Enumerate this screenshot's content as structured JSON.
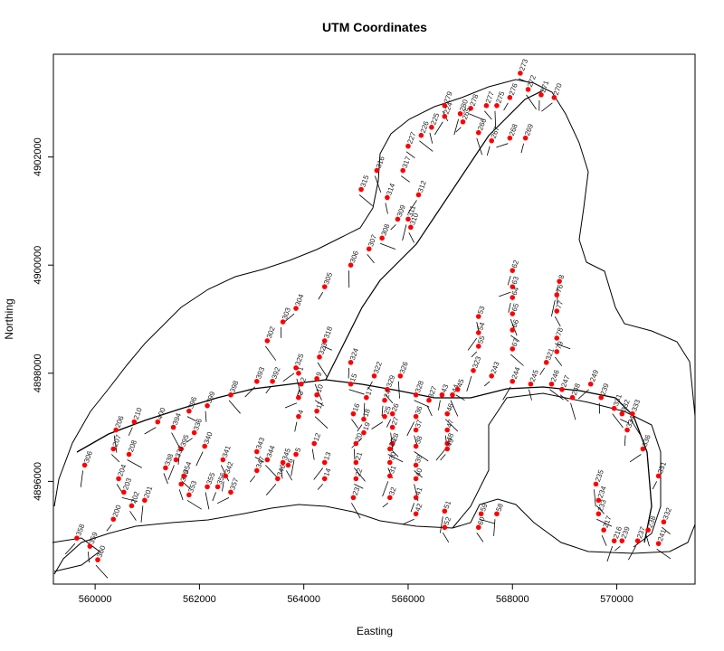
{
  "chart_data": {
    "type": "scatter",
    "title": "UTM Coordinates",
    "xlabel": "Easting",
    "ylabel": "Northing",
    "xlim": [
      559200,
      571500
    ],
    "ylim": [
      4894100,
      4903900
    ],
    "x_ticks": [
      560000,
      562000,
      564000,
      566000,
      568000,
      570000
    ],
    "x_tick_labels": [
      "560000",
      "562000",
      "564000",
      "566000",
      "568000",
      "570000"
    ],
    "y_ticks": [
      4896000,
      4898000,
      4900000,
      4902000
    ],
    "y_tick_labels": [
      "4896000",
      "4898000",
      "4900000",
      "4902000"
    ],
    "grid": false,
    "legend": "none",
    "point_color": "#ff0000",
    "line_color": "#000000",
    "points": [
      {
        "id": "273",
        "x": 568150,
        "y": 4903550
      },
      {
        "id": "272",
        "x": 568300,
        "y": 4903250
      },
      {
        "id": "271",
        "x": 568550,
        "y": 4903150
      },
      {
        "id": "270",
        "x": 568800,
        "y": 4903100
      },
      {
        "id": "276",
        "x": 567950,
        "y": 4903100
      },
      {
        "id": "275",
        "x": 567700,
        "y": 4902950
      },
      {
        "id": "277",
        "x": 567500,
        "y": 4902950
      },
      {
        "id": "278",
        "x": 567200,
        "y": 4902900
      },
      {
        "id": "279",
        "x": 566700,
        "y": 4902950
      },
      {
        "id": "280",
        "x": 567000,
        "y": 4902800
      },
      {
        "id": "265",
        "x": 567050,
        "y": 4902650
      },
      {
        "id": "224",
        "x": 566700,
        "y": 4902750
      },
      {
        "id": "225",
        "x": 566450,
        "y": 4902550
      },
      {
        "id": "226",
        "x": 566250,
        "y": 4902400
      },
      {
        "id": "227",
        "x": 566000,
        "y": 4902200
      },
      {
        "id": "266",
        "x": 567350,
        "y": 4902450
      },
      {
        "id": "267",
        "x": 567600,
        "y": 4902300
      },
      {
        "id": "268",
        "x": 567950,
        "y": 4902350
      },
      {
        "id": "269",
        "x": 568250,
        "y": 4902350
      },
      {
        "id": "316",
        "x": 565400,
        "y": 4901750
      },
      {
        "id": "317",
        "x": 565900,
        "y": 4901750
      },
      {
        "id": "315",
        "x": 565100,
        "y": 4901400
      },
      {
        "id": "314",
        "x": 565600,
        "y": 4901250
      },
      {
        "id": "312",
        "x": 566200,
        "y": 4901300
      },
      {
        "id": "309",
        "x": 565800,
        "y": 4900850
      },
      {
        "id": "311",
        "x": 566000,
        "y": 4900850
      },
      {
        "id": "310",
        "x": 566050,
        "y": 4900700
      },
      {
        "id": "308",
        "x": 565500,
        "y": 4900500
      },
      {
        "id": "307",
        "x": 565250,
        "y": 4900300
      },
      {
        "id": "306",
        "x": 564900,
        "y": 4900000
      },
      {
        "id": "305",
        "x": 564400,
        "y": 4899600
      },
      {
        "id": "304",
        "x": 563850,
        "y": 4899200
      },
      {
        "id": "303",
        "x": 563600,
        "y": 4898950
      },
      {
        "id": "302",
        "x": 563300,
        "y": 4898600
      },
      {
        "id": "318",
        "x": 564400,
        "y": 4898600
      },
      {
        "id": "323",
        "x": 564300,
        "y": 4898300
      },
      {
        "id": "324",
        "x": 564900,
        "y": 4898200
      },
      {
        "id": "325",
        "x": 563850,
        "y": 4898100
      },
      {
        "id": "322",
        "x": 565350,
        "y": 4897950
      },
      {
        "id": "326",
        "x": 565850,
        "y": 4897950
      },
      {
        "id": "329",
        "x": 565600,
        "y": 4897700
      },
      {
        "id": "328",
        "x": 566150,
        "y": 4897600
      },
      {
        "id": "327",
        "x": 566400,
        "y": 4897500
      },
      {
        "id": "323",
        "x": 567250,
        "y": 4898050
      },
      {
        "id": "243",
        "x": 567600,
        "y": 4897950
      },
      {
        "id": "244",
        "x": 568000,
        "y": 4897850
      },
      {
        "id": "245",
        "x": 568350,
        "y": 4897800
      },
      {
        "id": "246",
        "x": 568750,
        "y": 4897800
      },
      {
        "id": "247",
        "x": 568950,
        "y": 4897700
      },
      {
        "id": "248",
        "x": 569150,
        "y": 4897550
      },
      {
        "id": "62",
        "x": 568000,
        "y": 4899900
      },
      {
        "id": "63",
        "x": 568000,
        "y": 4899600
      },
      {
        "id": "64",
        "x": 568000,
        "y": 4899400
      },
      {
        "id": "65",
        "x": 568000,
        "y": 4899100
      },
      {
        "id": "66",
        "x": 568000,
        "y": 4898800
      },
      {
        "id": "67",
        "x": 568000,
        "y": 4898450
      },
      {
        "id": "53",
        "x": 567350,
        "y": 4899050
      },
      {
        "id": "54",
        "x": 567350,
        "y": 4898750
      },
      {
        "id": "55",
        "x": 567350,
        "y": 4898500
      },
      {
        "id": "76",
        "x": 568850,
        "y": 4899450
      },
      {
        "id": "77",
        "x": 568850,
        "y": 4899150
      },
      {
        "id": "78",
        "x": 568850,
        "y": 4898650
      },
      {
        "id": "79",
        "x": 568850,
        "y": 4898400
      },
      {
        "id": "8",
        "x": 568900,
        "y": 4899700
      },
      {
        "id": "321",
        "x": 568650,
        "y": 4898200
      },
      {
        "id": "249",
        "x": 569500,
        "y": 4897800
      },
      {
        "id": "239",
        "x": 569700,
        "y": 4897550
      },
      {
        "id": "331",
        "x": 569950,
        "y": 4897350
      },
      {
        "id": "332",
        "x": 570100,
        "y": 4897250
      },
      {
        "id": "333",
        "x": 570300,
        "y": 4897250
      },
      {
        "id": "334",
        "x": 570200,
        "y": 4896950
      },
      {
        "id": "336",
        "x": 570500,
        "y": 4896600
      },
      {
        "id": "331",
        "x": 570800,
        "y": 4896100
      },
      {
        "id": "235",
        "x": 569600,
        "y": 4895950
      },
      {
        "id": "234",
        "x": 569650,
        "y": 4895650
      },
      {
        "id": "233",
        "x": 569650,
        "y": 4895400
      },
      {
        "id": "217",
        "x": 569750,
        "y": 4895100
      },
      {
        "id": "216",
        "x": 569950,
        "y": 4894900
      },
      {
        "id": "239",
        "x": 570100,
        "y": 4894900
      },
      {
        "id": "237",
        "x": 570400,
        "y": 4894900
      },
      {
        "id": "238",
        "x": 570600,
        "y": 4895100
      },
      {
        "id": "241",
        "x": 570800,
        "y": 4894850
      },
      {
        "id": "332",
        "x": 570900,
        "y": 4895250
      },
      {
        "id": "1",
        "x": 563900,
        "y": 4898000
      },
      {
        "id": "2",
        "x": 563950,
        "y": 4897800
      },
      {
        "id": "3",
        "x": 563900,
        "y": 4897550
      },
      {
        "id": "4",
        "x": 563900,
        "y": 4897200
      },
      {
        "id": "9",
        "x": 564250,
        "y": 4897900
      },
      {
        "id": "10",
        "x": 564250,
        "y": 4897600
      },
      {
        "id": "11",
        "x": 564250,
        "y": 4897300
      },
      {
        "id": "12",
        "x": 564200,
        "y": 4896700
      },
      {
        "id": "13",
        "x": 564400,
        "y": 4896350
      },
      {
        "id": "14",
        "x": 564400,
        "y": 4896050
      },
      {
        "id": "5",
        "x": 563850,
        "y": 4896500
      },
      {
        "id": "6",
        "x": 563700,
        "y": 4896300
      },
      {
        "id": "15",
        "x": 564900,
        "y": 4897800
      },
      {
        "id": "16",
        "x": 564950,
        "y": 4897250
      },
      {
        "id": "17",
        "x": 565200,
        "y": 4897550
      },
      {
        "id": "18",
        "x": 565150,
        "y": 4897150
      },
      {
        "id": "19",
        "x": 565150,
        "y": 4896900
      },
      {
        "id": "20",
        "x": 565000,
        "y": 4896700
      },
      {
        "id": "21",
        "x": 565000,
        "y": 4896350
      },
      {
        "id": "22",
        "x": 565000,
        "y": 4896050
      },
      {
        "id": "23",
        "x": 564950,
        "y": 4895700
      },
      {
        "id": "24",
        "x": 565550,
        "y": 4897500
      },
      {
        "id": "25",
        "x": 565550,
        "y": 4897200
      },
      {
        "id": "26",
        "x": 565700,
        "y": 4897250
      },
      {
        "id": "27",
        "x": 565700,
        "y": 4897000
      },
      {
        "id": "28",
        "x": 565700,
        "y": 4896700
      },
      {
        "id": "29",
        "x": 565650,
        "y": 4896600
      },
      {
        "id": "30",
        "x": 565650,
        "y": 4896350
      },
      {
        "id": "31",
        "x": 565650,
        "y": 4896100
      },
      {
        "id": "32",
        "x": 565650,
        "y": 4895700
      },
      {
        "id": "36",
        "x": 566150,
        "y": 4897200
      },
      {
        "id": "37",
        "x": 566150,
        "y": 4896950
      },
      {
        "id": "38",
        "x": 566150,
        "y": 4896650
      },
      {
        "id": "39",
        "x": 566150,
        "y": 4896300
      },
      {
        "id": "40",
        "x": 566150,
        "y": 4896050
      },
      {
        "id": "41",
        "x": 566150,
        "y": 4895700
      },
      {
        "id": "42",
        "x": 566150,
        "y": 4895400
      },
      {
        "id": "43",
        "x": 566650,
        "y": 4897600
      },
      {
        "id": "44",
        "x": 566850,
        "y": 4897600
      },
      {
        "id": "45",
        "x": 566950,
        "y": 4897700
      },
      {
        "id": "46",
        "x": 566750,
        "y": 4897250
      },
      {
        "id": "47",
        "x": 566750,
        "y": 4896950
      },
      {
        "id": "48",
        "x": 566750,
        "y": 4896700
      },
      {
        "id": "49",
        "x": 566750,
        "y": 4896600
      },
      {
        "id": "51",
        "x": 566700,
        "y": 4895450
      },
      {
        "id": "52",
        "x": 566700,
        "y": 4895150
      },
      {
        "id": "59",
        "x": 567400,
        "y": 4895400
      },
      {
        "id": "60",
        "x": 567350,
        "y": 4895150
      },
      {
        "id": "58",
        "x": 567700,
        "y": 4895400
      },
      {
        "id": "392",
        "x": 563400,
        "y": 4897850
      },
      {
        "id": "393",
        "x": 563100,
        "y": 4897850
      },
      {
        "id": "399",
        "x": 562150,
        "y": 4897400
      },
      {
        "id": "398",
        "x": 562600,
        "y": 4897600
      },
      {
        "id": "396",
        "x": 561800,
        "y": 4897300
      },
      {
        "id": "394",
        "x": 561500,
        "y": 4897000
      },
      {
        "id": "395",
        "x": 561650,
        "y": 4896600
      },
      {
        "id": "400",
        "x": 561200,
        "y": 4897100
      },
      {
        "id": "210",
        "x": 560750,
        "y": 4897100
      },
      {
        "id": "206",
        "x": 560400,
        "y": 4896950
      },
      {
        "id": "207",
        "x": 560350,
        "y": 4896600
      },
      {
        "id": "208",
        "x": 560650,
        "y": 4896500
      },
      {
        "id": "338",
        "x": 561350,
        "y": 4896250
      },
      {
        "id": "337",
        "x": 561550,
        "y": 4896400
      },
      {
        "id": "336",
        "x": 561900,
        "y": 4896900
      },
      {
        "id": "340",
        "x": 562100,
        "y": 4896650
      },
      {
        "id": "339",
        "x": 561650,
        "y": 4895950
      },
      {
        "id": "353",
        "x": 561800,
        "y": 4895750
      },
      {
        "id": "354",
        "x": 561700,
        "y": 4896100
      },
      {
        "id": "355",
        "x": 562150,
        "y": 4895900
      },
      {
        "id": "356",
        "x": 562350,
        "y": 4895900
      },
      {
        "id": "357",
        "x": 562600,
        "y": 4895800
      },
      {
        "id": "342",
        "x": 562500,
        "y": 4896100
      },
      {
        "id": "341",
        "x": 562450,
        "y": 4896400
      },
      {
        "id": "343",
        "x": 563100,
        "y": 4896550
      },
      {
        "id": "344",
        "x": 563300,
        "y": 4896400
      },
      {
        "id": "345",
        "x": 563600,
        "y": 4896350
      },
      {
        "id": "346",
        "x": 563500,
        "y": 4896050
      },
      {
        "id": "347",
        "x": 563100,
        "y": 4896200
      },
      {
        "id": "306",
        "x": 559800,
        "y": 4896300
      },
      {
        "id": "204",
        "x": 560450,
        "y": 4896050
      },
      {
        "id": "203",
        "x": 560550,
        "y": 4895800
      },
      {
        "id": "202",
        "x": 560700,
        "y": 4895550
      },
      {
        "id": "201",
        "x": 560950,
        "y": 4895650
      },
      {
        "id": "200",
        "x": 560350,
        "y": 4895300
      },
      {
        "id": "358",
        "x": 559650,
        "y": 4894950
      },
      {
        "id": "359",
        "x": 559900,
        "y": 4894800
      },
      {
        "id": "360",
        "x": 560050,
        "y": 4894550
      }
    ]
  }
}
